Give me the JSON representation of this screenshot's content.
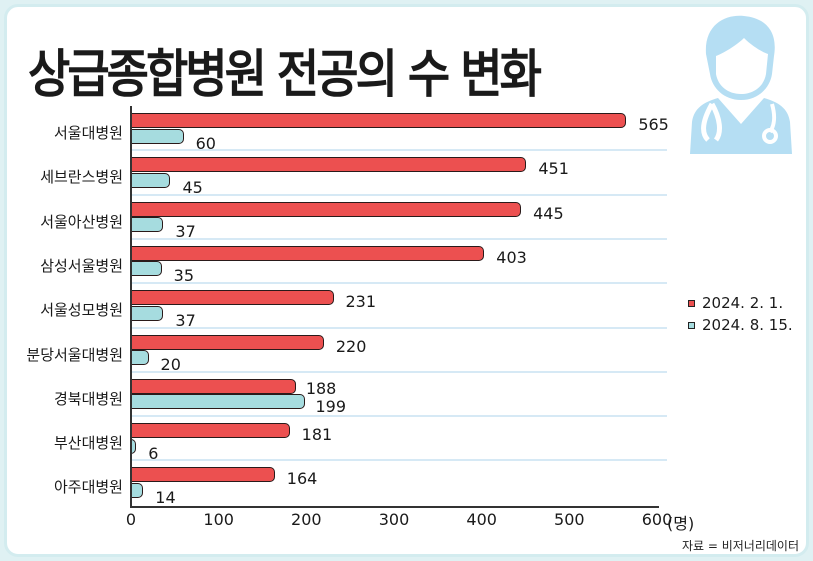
{
  "title": "상급종합병원 전공의 수 변화",
  "source": "자료 = 비저너리데이터",
  "icon": "doctor-with-stethoscope-icon",
  "colors": {
    "series1": "#ec5050",
    "series2": "#a6dcdf",
    "border": "#d3ecef",
    "icon": "#b5def3"
  },
  "legend": [
    {
      "label": "2024. 2. 1.",
      "color": "#ec5050"
    },
    {
      "label": "2024. 8. 15.",
      "color": "#a6dcdf"
    }
  ],
  "x_unit": "(명)",
  "chart_data": {
    "type": "bar",
    "orientation": "horizontal",
    "title": "상급종합병원 전공의 수 변화",
    "xlabel": "(명)",
    "ylabel": "",
    "xlim": [
      0,
      600
    ],
    "x_ticks": [
      0,
      100,
      200,
      300,
      400,
      500,
      600
    ],
    "categories": [
      "서울대병원",
      "세브란스병원",
      "서울아산병원",
      "삼성서울병원",
      "서울성모병원",
      "분당서울대병원",
      "경북대병원",
      "부산대병원",
      "아주대병원"
    ],
    "series": [
      {
        "name": "2024. 2. 1.",
        "values": [
          565,
          451,
          445,
          403,
          231,
          220,
          188,
          181,
          164
        ]
      },
      {
        "name": "2024. 8. 15.",
        "values": [
          60,
          45,
          37,
          35,
          37,
          20,
          199,
          6,
          14
        ]
      }
    ],
    "legend_position": "right",
    "grid": "horizontal row separators",
    "source": "자료 = 비저너리데이터"
  }
}
